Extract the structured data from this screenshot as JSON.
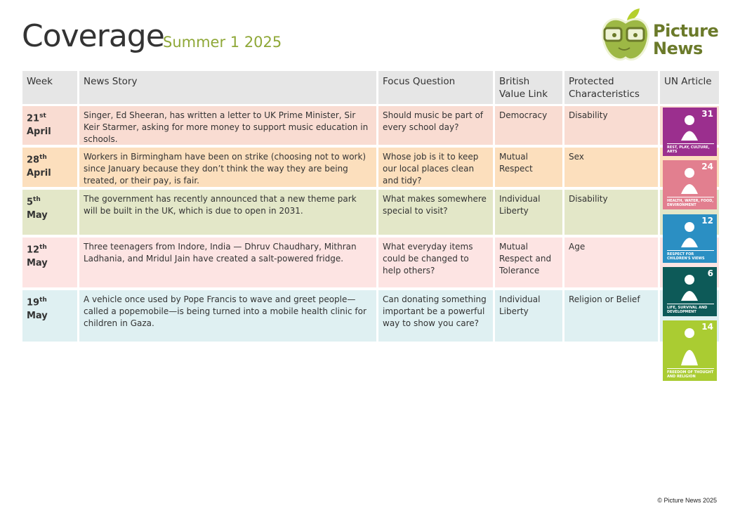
{
  "header": {
    "title": "Coverage",
    "subtitle": "Summer 1 2025",
    "logo_text": "Picture News"
  },
  "table": {
    "columns": [
      "Week",
      "News Story",
      "Focus Question",
      "British Value Link",
      "Protected Characteristics",
      "UN Article"
    ],
    "rows": [
      {
        "day": "21",
        "suffix": "st",
        "month": "April",
        "story": "Singer, Ed Sheeran, has written a letter to UK Prime Minister, Sir Keir Starmer, asking for more money to support music education in schools.",
        "question": "Should music be part of every school day?",
        "value": "Democracy",
        "characteristic": "Disability",
        "color": "#f9dcd2"
      },
      {
        "day": "28",
        "suffix": "th",
        "month": "April",
        "story": "Workers in Birmingham have been on strike (choosing not to work) since January because they don’t think the way they are being treated, or their pay, is fair.",
        "question": "Whose job is it to keep our local places clean and tidy?",
        "value": "Mutual Respect",
        "characteristic": "Sex",
        "color": "#fcdfbd"
      },
      {
        "day": "5",
        "suffix": "th",
        "month": "May",
        "story": "The government has recently announced that a new theme park will be built in the UK, which is due to open in 2031.",
        "question": "What makes somewhere special to visit?",
        "value": "Individual Liberty",
        "characteristic": "Disability",
        "color": "#e3e7c8"
      },
      {
        "day": "12",
        "suffix": "th",
        "month": "May",
        "story": "Three teenagers from Indore, India — Dhruv Chaudhary, Mithran Ladhania, and Mridul Jain have created a salt-powered fridge.",
        "question": "What everyday items could be changed to help others?",
        "value": "Mutual Respect and Tolerance",
        "characteristic": "Age",
        "color": "#fde4e3"
      },
      {
        "day": "19",
        "suffix": "th",
        "month": "May",
        "story": "A vehicle once used by Pope Francis to wave and greet people—called a popemobile—is being turned into a mobile health clinic for children in Gaza.",
        "question": "Can donating something important be a powerful way to show you care?",
        "value": "Individual Liberty",
        "characteristic": "Religion or Belief",
        "color": "#dff0f2"
      }
    ]
  },
  "un_articles": [
    {
      "number": "31",
      "label": "REST, PLAY, CULTURE, ARTS",
      "color": "#9b2f8e"
    },
    {
      "number": "24",
      "label": "HEALTH, WATER, FOOD, ENVIRONMENT",
      "color": "#e27f8f"
    },
    {
      "number": "12",
      "label": "RESPECT FOR CHILDREN'S VIEWS",
      "color": "#2b8fc3"
    },
    {
      "number": "6",
      "label": "LIFE, SURVIVAL AND DEVELOPMENT",
      "color": "#0d5a58"
    },
    {
      "number": "14",
      "label": "FREEDOM OF THOUGHT AND RELIGION",
      "color": "#aacc32"
    }
  ],
  "footer": "© Picture News 2025"
}
